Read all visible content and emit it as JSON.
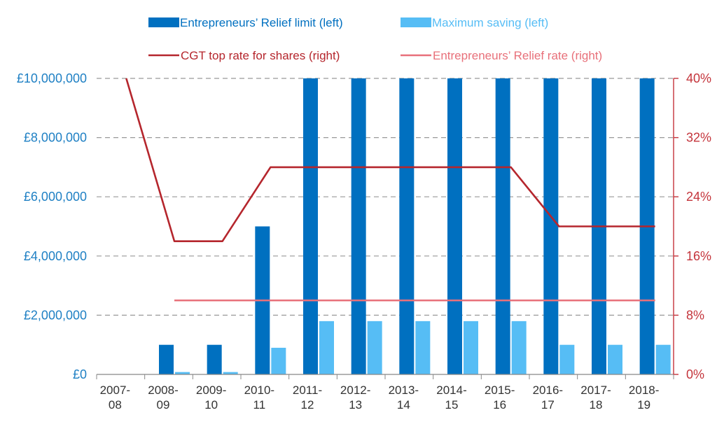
{
  "chart_data": {
    "type": "bar",
    "categories": [
      [
        "2007-",
        "08"
      ],
      [
        "2008-",
        "09"
      ],
      [
        "2009-",
        "10"
      ],
      [
        "2010-",
        "11"
      ],
      [
        "2011-",
        "12"
      ],
      [
        "2012-",
        "13"
      ],
      [
        "2013-",
        "14"
      ],
      [
        "2014-",
        "15"
      ],
      [
        "2015-",
        "16"
      ],
      [
        "2016-",
        "17"
      ],
      [
        "2017-",
        "18"
      ],
      [
        "2018-",
        "19"
      ]
    ],
    "left_axis": {
      "ylim": [
        0,
        10000000
      ],
      "ticks": [
        0,
        2000000,
        4000000,
        6000000,
        8000000,
        10000000
      ],
      "tick_labels": [
        "£0",
        "£2,000,000",
        "£4,000,000",
        "£6,000,000",
        "£8,000,000",
        "£10,000,000"
      ],
      "color": "#1f80c4"
    },
    "right_axis": {
      "ylim": [
        0,
        40
      ],
      "ticks": [
        0,
        8,
        16,
        24,
        32,
        40
      ],
      "tick_labels": [
        "0%",
        "8%",
        "16%",
        "24%",
        "32%",
        "40%"
      ],
      "color": "#c4343b"
    },
    "grid": true,
    "legend_position": "top",
    "bar_series": [
      {
        "name": "Entrepreneurs’ Relief limit (left)",
        "color": "#0070c0",
        "values": [
          0,
          1000000,
          1000000,
          5000000,
          10000000,
          10000000,
          10000000,
          10000000,
          10000000,
          10000000,
          10000000,
          10000000
        ]
      },
      {
        "name": "Maximum saving (left)",
        "color": "#56bdf5",
        "values": [
          0,
          80000,
          80000,
          900000,
          1800000,
          1800000,
          1800000,
          1800000,
          1800000,
          1000000,
          1000000,
          1000000
        ]
      }
    ],
    "line_series": [
      {
        "name": "CGT top rate for shares (right)",
        "color": "#b5262d",
        "values": [
          40,
          18,
          18,
          28,
          28,
          28,
          28,
          28,
          28,
          20,
          20,
          20
        ]
      },
      {
        "name": "Entrepreneurs’ Relief rate (right)",
        "color": "#e8707a",
        "values": [
          null,
          10,
          10,
          10,
          10,
          10,
          10,
          10,
          10,
          10,
          10,
          10
        ]
      }
    ]
  }
}
